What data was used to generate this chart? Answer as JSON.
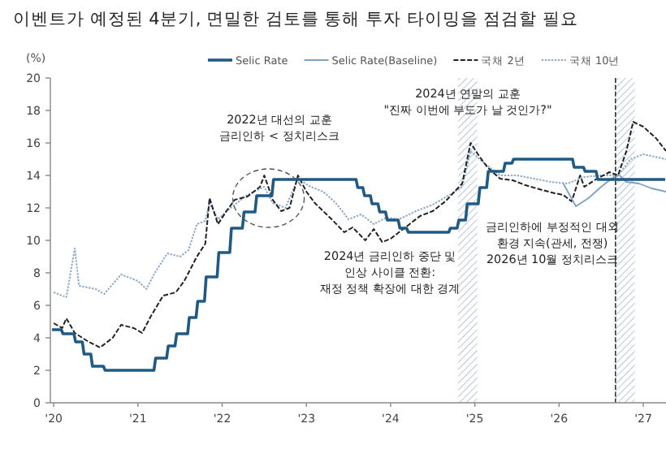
{
  "chart_data": {
    "type": "line",
    "title": "이벤트가 예정된 4분기, 면밀한 검토를 통해 투자 타이밍을 점검할 필요",
    "ylabel": "(%)",
    "xlim": [
      2019.96,
      2027.27
    ],
    "xticks": [
      {
        "value": 2020,
        "label": "'20"
      },
      {
        "value": 2021,
        "label": "'21"
      },
      {
        "value": 2022,
        "label": "'22"
      },
      {
        "value": 2023,
        "label": "'23"
      },
      {
        "value": 2024,
        "label": "'24"
      },
      {
        "value": 2025,
        "label": "'25"
      },
      {
        "value": 2026,
        "label": "'26"
      },
      {
        "value": 2027,
        "label": "'27"
      }
    ],
    "ylim": [
      0,
      20
    ],
    "yticks": [
      0,
      2,
      4,
      6,
      8,
      10,
      12,
      14,
      16,
      18,
      20
    ],
    "grid": false,
    "legend": "top",
    "marker": "none",
    "series": [
      {
        "name": "Selic Rate",
        "color": "#1f5a85",
        "line_style": "solid",
        "x": [
          2019.98,
          2020.09,
          2020.11,
          2020.24,
          2020.26,
          2020.34,
          2020.36,
          2020.44,
          2020.46,
          2020.59,
          2020.61,
          2021.19,
          2021.21,
          2021.34,
          2021.36,
          2021.44,
          2021.46,
          2021.59,
          2021.61,
          2021.69,
          2021.71,
          2021.79,
          2021.81,
          2021.94,
          2021.96,
          2022.09,
          2022.11,
          2022.24,
          2022.26,
          2022.39,
          2022.41,
          2022.59,
          2022.61,
          2023.59,
          2023.61,
          2023.67,
          2023.69,
          2023.76,
          2023.78,
          2023.85,
          2023.87,
          2023.94,
          2023.96,
          2024.09,
          2024.11,
          2024.19,
          2024.21,
          2024.69,
          2024.71,
          2024.79,
          2024.81,
          2024.89,
          2024.91,
          2025.04,
          2025.06,
          2025.14,
          2025.16,
          2025.34,
          2025.36,
          2025.44,
          2025.46,
          2026.16,
          2026.18,
          2026.29,
          2026.31,
          2026.44,
          2026.46,
          2027.26
        ],
        "values": [
          4.5,
          4.5,
          4.25,
          4.25,
          3.75,
          3.75,
          3.0,
          3.0,
          2.25,
          2.25,
          2.0,
          2.0,
          2.75,
          2.75,
          3.5,
          3.5,
          4.25,
          4.25,
          5.25,
          5.25,
          6.25,
          6.25,
          7.75,
          7.75,
          9.25,
          9.25,
          10.75,
          10.75,
          11.75,
          11.75,
          12.75,
          12.75,
          13.75,
          13.75,
          13.25,
          13.25,
          12.75,
          12.75,
          12.25,
          12.25,
          11.75,
          11.75,
          11.25,
          11.25,
          10.75,
          10.75,
          10.5,
          10.5,
          10.75,
          10.75,
          11.25,
          11.25,
          12.25,
          12.25,
          13.25,
          13.25,
          14.25,
          14.25,
          14.75,
          14.75,
          15.0,
          15.0,
          14.5,
          14.5,
          14.25,
          14.25,
          13.75,
          13.75
        ]
      },
      {
        "name": "Selic Rate(Baseline)",
        "color": "#7f9fc4",
        "line_style": "solid",
        "x": [
          2026.05,
          2026.2,
          2026.35,
          2026.5,
          2026.65,
          2026.72,
          2026.8,
          2026.95,
          2027.1,
          2027.27
        ],
        "values": [
          13.5,
          12.1,
          12.6,
          13.3,
          13.9,
          14.0,
          13.6,
          13.5,
          13.2,
          13.0
        ]
      },
      {
        "name": "국채 2년",
        "color": "#222222",
        "line_style": "dashed",
        "x": [
          2020.0,
          2020.1,
          2020.15,
          2020.25,
          2020.4,
          2020.55,
          2020.7,
          2020.8,
          2020.95,
          2021.05,
          2021.15,
          2021.3,
          2021.45,
          2021.55,
          2021.7,
          2021.8,
          2021.85,
          2021.95,
          2022.05,
          2022.15,
          2022.3,
          2022.45,
          2022.5,
          2022.6,
          2022.7,
          2022.8,
          2022.9,
          2023.0,
          2023.1,
          2023.3,
          2023.45,
          2023.55,
          2023.7,
          2023.8,
          2023.9,
          2024.0,
          2024.15,
          2024.35,
          2024.5,
          2024.65,
          2024.85,
          2024.95,
          2025.05,
          2025.15,
          2025.3,
          2025.45,
          2025.6,
          2025.8,
          2025.95,
          2026.05,
          2026.15,
          2026.25,
          2026.3,
          2026.45,
          2026.6,
          2026.7,
          2026.8,
          2026.88,
          2027.0,
          2027.15,
          2027.27
        ],
        "values": [
          4.9,
          4.6,
          5.2,
          4.3,
          3.8,
          3.4,
          4.0,
          4.8,
          4.6,
          4.3,
          5.3,
          6.6,
          6.8,
          7.5,
          9.0,
          9.8,
          12.6,
          11.0,
          11.8,
          12.5,
          12.7,
          13.3,
          14.0,
          12.5,
          11.8,
          12.0,
          14.0,
          13.0,
          12.3,
          11.3,
          10.5,
          10.8,
          10.0,
          10.7,
          9.9,
          10.1,
          10.7,
          11.5,
          11.8,
          12.4,
          13.5,
          16.0,
          15.2,
          14.5,
          13.8,
          13.7,
          13.4,
          13.1,
          12.9,
          12.8,
          12.4,
          14.0,
          13.3,
          13.8,
          14.2,
          14.0,
          15.5,
          17.3,
          17.0,
          16.3,
          15.5
        ]
      },
      {
        "name": "국채 10년",
        "color": "#8fa9cc",
        "line_style": "dotted",
        "x": [
          2020.0,
          2020.15,
          2020.25,
          2020.3,
          2020.5,
          2020.6,
          2020.8,
          2021.0,
          2021.1,
          2021.2,
          2021.35,
          2021.5,
          2021.6,
          2021.7,
          2021.8,
          2021.85,
          2021.95,
          2022.1,
          2022.3,
          2022.5,
          2022.6,
          2022.75,
          2022.9,
          2023.05,
          2023.2,
          2023.35,
          2023.5,
          2023.65,
          2023.8,
          2023.95,
          2024.1,
          2024.3,
          2024.5,
          2024.7,
          2024.85,
          2024.95,
          2025.1,
          2025.3,
          2025.5,
          2025.7,
          2025.9,
          2026.1,
          2026.3,
          2026.5,
          2026.7,
          2026.85,
          2027.0,
          2027.27
        ],
        "values": [
          6.8,
          6.5,
          9.5,
          7.2,
          7.0,
          6.7,
          7.9,
          7.5,
          7.0,
          8.0,
          9.2,
          9.0,
          9.4,
          11.0,
          11.2,
          12.3,
          11.3,
          12.0,
          12.8,
          13.3,
          12.3,
          12.0,
          13.8,
          13.3,
          13.0,
          12.3,
          11.3,
          11.6,
          11.0,
          11.4,
          11.3,
          11.8,
          12.2,
          12.8,
          13.3,
          15.5,
          14.8,
          14.0,
          14.0,
          13.8,
          13.6,
          13.5,
          13.9,
          14.0,
          14.0,
          15.0,
          15.3,
          15.0
        ]
      }
    ],
    "bands": [
      {
        "axis": "x",
        "from": 2024.8,
        "to": 2025.03,
        "color": "#b8c6dc"
      },
      {
        "axis": "x",
        "from": 2026.67,
        "to": 2026.9,
        "color": "#b8c6dc"
      }
    ],
    "ref_lines": [
      {
        "axis": "x",
        "value": 2026.67,
        "color": "#333333",
        "line_style": "dashed"
      }
    ],
    "annotations": [
      "2022년 대선의 교훈\n금리인하 < 정치리스크",
      "2024년 연말의 교훈\n\"진짜 이번에 부도가 날 것인가?\"",
      "2024년 금리인하 중단 및\n인상 사이클 전환:\n재정 정책 확장에 대한 경계",
      "금리인하에 부정적인 대외\n환경 지속(관세, 전쟁)\n2026년 10월 정치리스크"
    ]
  }
}
